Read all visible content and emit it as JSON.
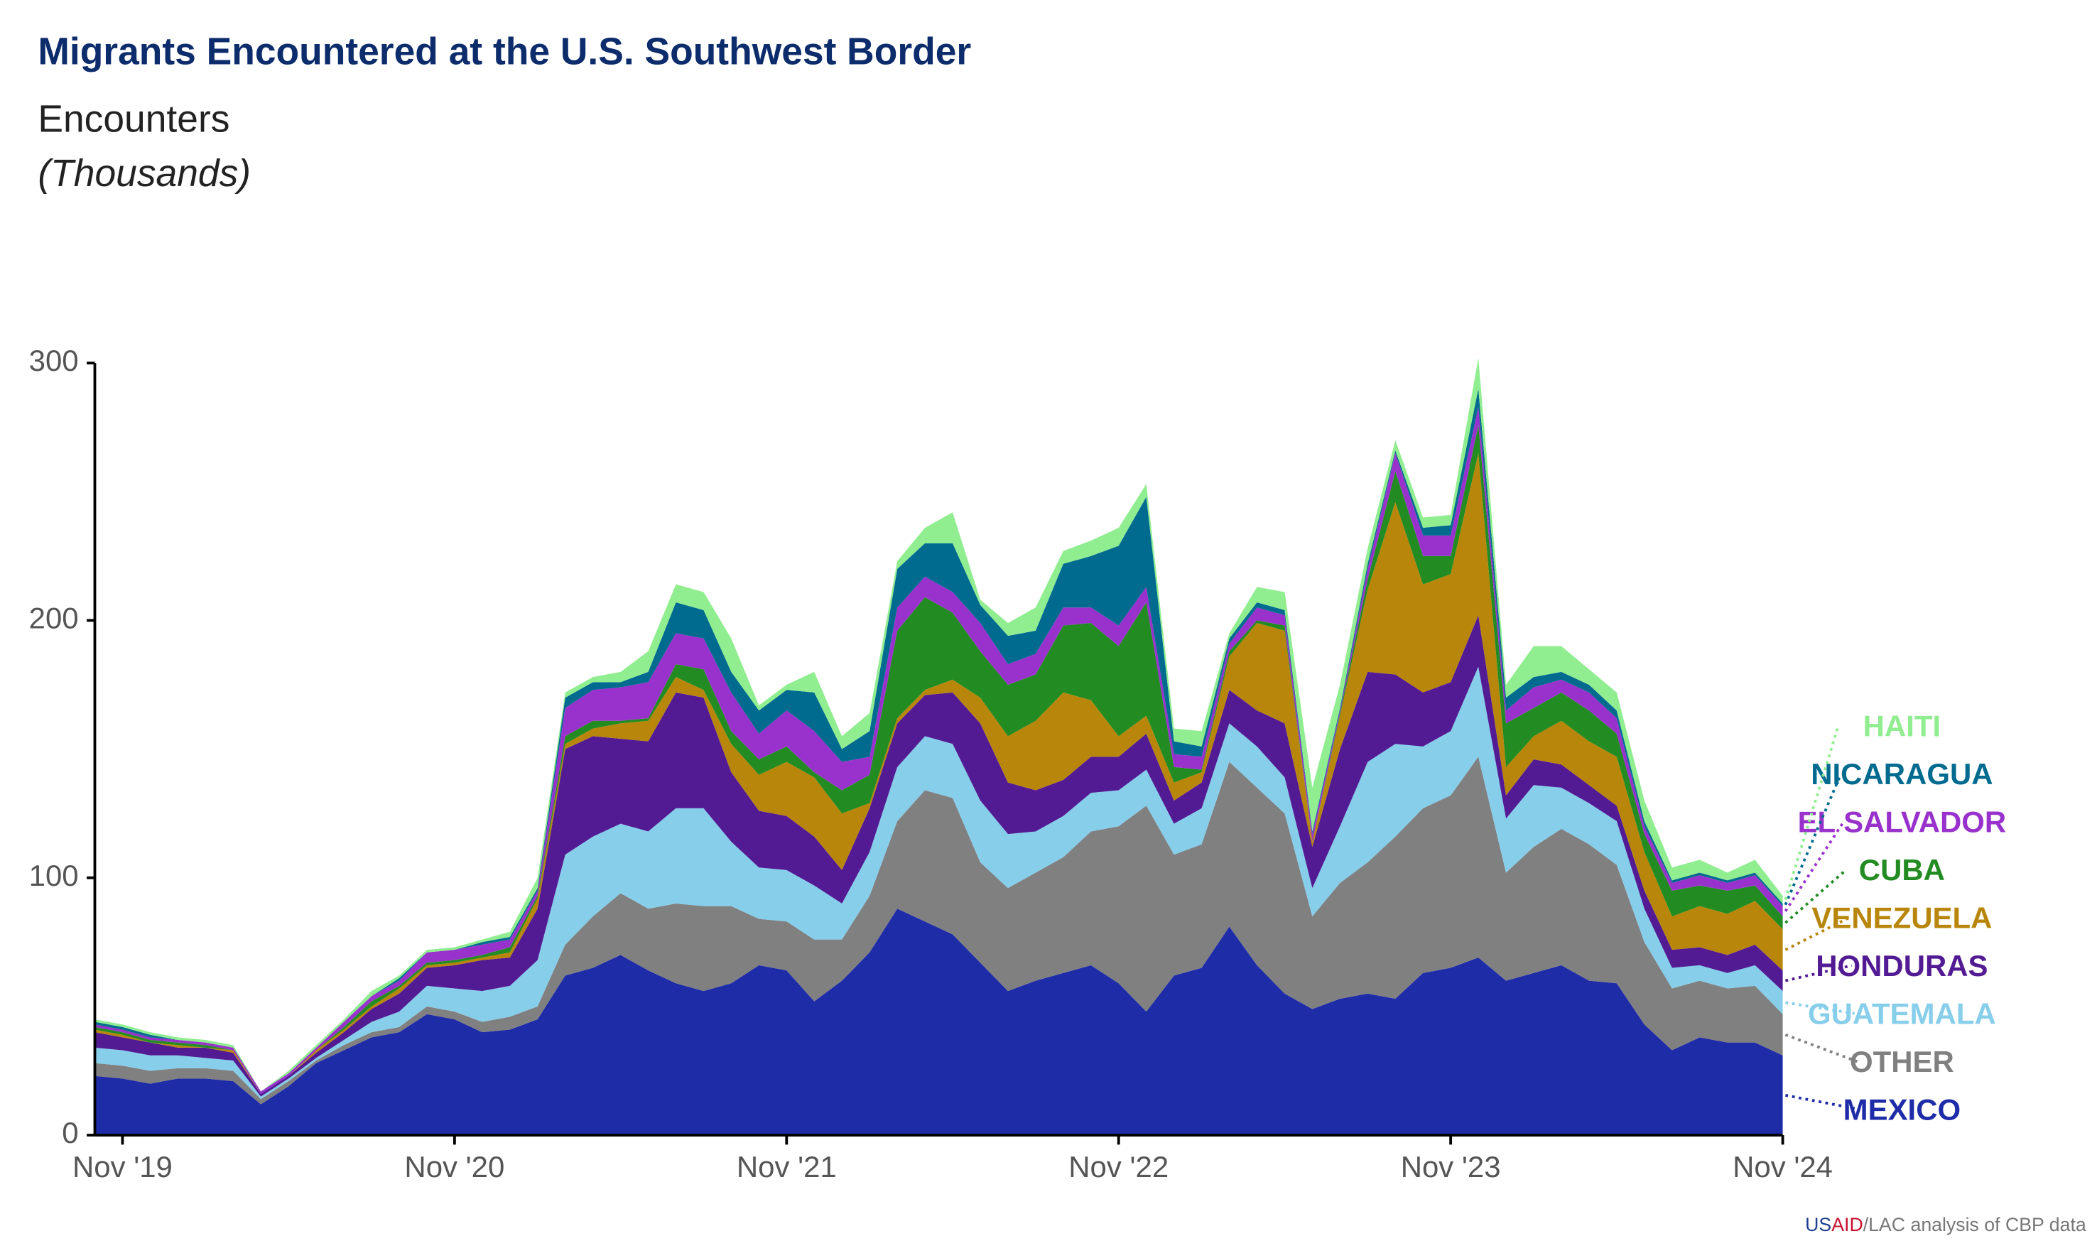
{
  "chart_data": {
    "type": "stacked_area",
    "title": "Migrants Encountered at the U.S. Southwest Border",
    "ylabel": "Encounters",
    "ylabel_note": "(Thousands)",
    "source": [
      "US",
      "AID",
      "/LAC analysis of CBP data"
    ],
    "categories": [
      null,
      "Nov '19",
      null,
      null,
      null,
      null,
      null,
      null,
      null,
      null,
      null,
      null,
      null,
      "Nov '20",
      null,
      null,
      null,
      null,
      null,
      null,
      null,
      null,
      null,
      null,
      null,
      "Nov '21",
      null,
      null,
      null,
      null,
      null,
      null,
      null,
      null,
      null,
      null,
      null,
      "Nov '22",
      null,
      null,
      null,
      null,
      null,
      null,
      null,
      null,
      null,
      null,
      null,
      "Nov '23",
      null,
      null,
      null,
      null,
      null,
      null,
      null,
      null,
      null,
      null,
      null,
      "Nov '24"
    ],
    "ylim": [
      0,
      300
    ],
    "yticks": [
      0,
      100,
      200,
      300
    ],
    "grid": false,
    "series": [
      {
        "name": "MEXICO",
        "color": "#1f2ca8",
        "values": [
          23,
          22,
          20,
          22,
          22,
          21,
          12,
          19,
          28,
          33,
          38,
          40,
          47,
          45,
          40,
          41,
          45,
          62,
          65,
          70,
          64,
          59,
          56,
          59,
          66,
          64,
          52,
          60,
          71,
          88,
          83,
          78,
          67,
          56,
          60,
          63,
          66,
          59,
          48,
          62,
          65,
          81,
          66,
          55,
          49,
          53,
          55,
          53,
          63,
          65,
          69,
          60,
          63,
          66,
          60,
          59,
          43,
          33,
          38,
          36,
          36,
          31
        ]
      },
      {
        "name": "OTHER",
        "color": "#808080",
        "values": [
          5,
          5,
          5,
          4,
          4,
          4,
          2,
          2,
          1,
          2,
          2,
          2,
          3,
          3,
          4,
          5,
          5,
          12,
          20,
          24,
          24,
          31,
          33,
          30,
          18,
          19,
          24,
          16,
          22,
          34,
          51,
          53,
          39,
          40,
          42,
          45,
          52,
          61,
          80,
          47,
          48,
          64,
          69,
          70,
          36,
          45,
          51,
          63,
          64,
          67,
          78,
          42,
          49,
          53,
          53,
          46,
          32,
          24,
          22,
          21,
          22,
          16
        ]
      },
      {
        "name": "GUATEMALA",
        "color": "#87ceeb",
        "values": [
          6,
          6,
          6,
          5,
          4,
          4,
          1,
          1,
          1,
          2,
          4,
          6,
          8,
          9,
          12,
          12,
          18,
          35,
          31,
          27,
          30,
          37,
          38,
          25,
          20,
          20,
          21,
          14,
          17,
          21,
          21,
          21,
          24,
          21,
          16,
          16,
          15,
          14,
          14,
          12,
          14,
          15,
          16,
          14,
          11,
          22,
          39,
          36,
          24,
          25,
          35,
          21,
          24,
          16,
          16,
          17,
          13,
          8,
          6,
          6,
          8,
          9
        ]
      },
      {
        "name": "HONDURAS",
        "color": "#531b93",
        "values": [
          6,
          5,
          5,
          3,
          4,
          3,
          1,
          1,
          2,
          3,
          5,
          7,
          7,
          9,
          12,
          11,
          20,
          41,
          39,
          33,
          35,
          45,
          43,
          27,
          22,
          21,
          19,
          13,
          17,
          17,
          16,
          20,
          30,
          20,
          16,
          14,
          14,
          13,
          14,
          9,
          10,
          13,
          14,
          21,
          16,
          30,
          35,
          27,
          21,
          19,
          20,
          9,
          10,
          9,
          7,
          6,
          7,
          7,
          7,
          7,
          8,
          8
        ]
      },
      {
        "name": "VENEZUELA",
        "color": "#b8860b",
        "values": [
          1,
          1,
          0,
          1,
          0,
          1,
          0,
          0,
          1,
          1,
          1,
          2,
          1,
          1,
          1,
          2,
          4,
          2,
          3,
          6,
          8,
          6,
          3,
          11,
          14,
          21,
          23,
          22,
          2,
          2,
          2,
          5,
          10,
          18,
          27,
          34,
          22,
          8,
          7,
          7,
          4,
          13,
          34,
          36,
          2,
          13,
          32,
          67,
          42,
          42,
          63,
          11,
          9,
          17,
          17,
          19,
          15,
          13,
          16,
          16,
          17,
          16
        ]
      },
      {
        "name": "CUBA",
        "color": "#228b22",
        "values": [
          1,
          1,
          1,
          1,
          1,
          0,
          0,
          0,
          0,
          1,
          2,
          1,
          1,
          1,
          1,
          2,
          1,
          3,
          3,
          1,
          1,
          5,
          8,
          5,
          6,
          6,
          2,
          9,
          11,
          34,
          36,
          26,
          18,
          20,
          18,
          26,
          30,
          35,
          44,
          6,
          1,
          2,
          1,
          2,
          0,
          1,
          4,
          12,
          11,
          7,
          11,
          17,
          11,
          11,
          12,
          9,
          7,
          10,
          8,
          9,
          6,
          5
        ]
      },
      {
        "name": "EL SALVADOR",
        "color": "#9932cc",
        "values": [
          1,
          1,
          1,
          1,
          1,
          1,
          1,
          1,
          1,
          2,
          2,
          2,
          4,
          4,
          4,
          3,
          2,
          11,
          12,
          13,
          14,
          12,
          12,
          15,
          10,
          14,
          16,
          11,
          7,
          9,
          8,
          8,
          11,
          8,
          8,
          7,
          6,
          8,
          6,
          5,
          5,
          3,
          5,
          4,
          3,
          1,
          4,
          7,
          8,
          8,
          7,
          5,
          8,
          5,
          7,
          6,
          3,
          3,
          4,
          3,
          4,
          4
        ]
      },
      {
        "name": "NICARAGUA",
        "color": "#006b8f",
        "values": [
          1,
          1,
          1,
          0,
          0,
          0,
          0,
          0,
          0,
          0,
          0,
          1,
          0,
          0,
          1,
          1,
          1,
          4,
          3,
          2,
          4,
          12,
          11,
          8,
          9,
          8,
          15,
          5,
          10,
          15,
          13,
          19,
          7,
          11,
          9,
          17,
          20,
          31,
          35,
          5,
          4,
          2,
          2,
          2,
          1,
          1,
          2,
          1,
          3,
          4,
          7,
          5,
          4,
          3,
          3,
          3,
          2,
          1,
          1,
          1,
          1,
          1
        ]
      },
      {
        "name": "HAITI",
        "color": "#90ee90",
        "values": [
          1,
          1,
          1,
          1,
          1,
          1,
          0,
          1,
          1,
          1,
          2,
          1,
          1,
          1,
          1,
          2,
          4,
          2,
          2,
          4,
          8,
          7,
          7,
          13,
          2,
          2,
          8,
          5,
          7,
          3,
          6,
          12,
          2,
          5,
          9,
          5,
          6,
          7,
          5,
          5,
          6,
          2,
          6,
          7,
          17,
          9,
          6,
          4,
          4,
          4,
          12,
          5,
          12,
          10,
          6,
          7,
          8,
          5,
          5,
          3,
          5,
          3
        ]
      }
    ]
  }
}
